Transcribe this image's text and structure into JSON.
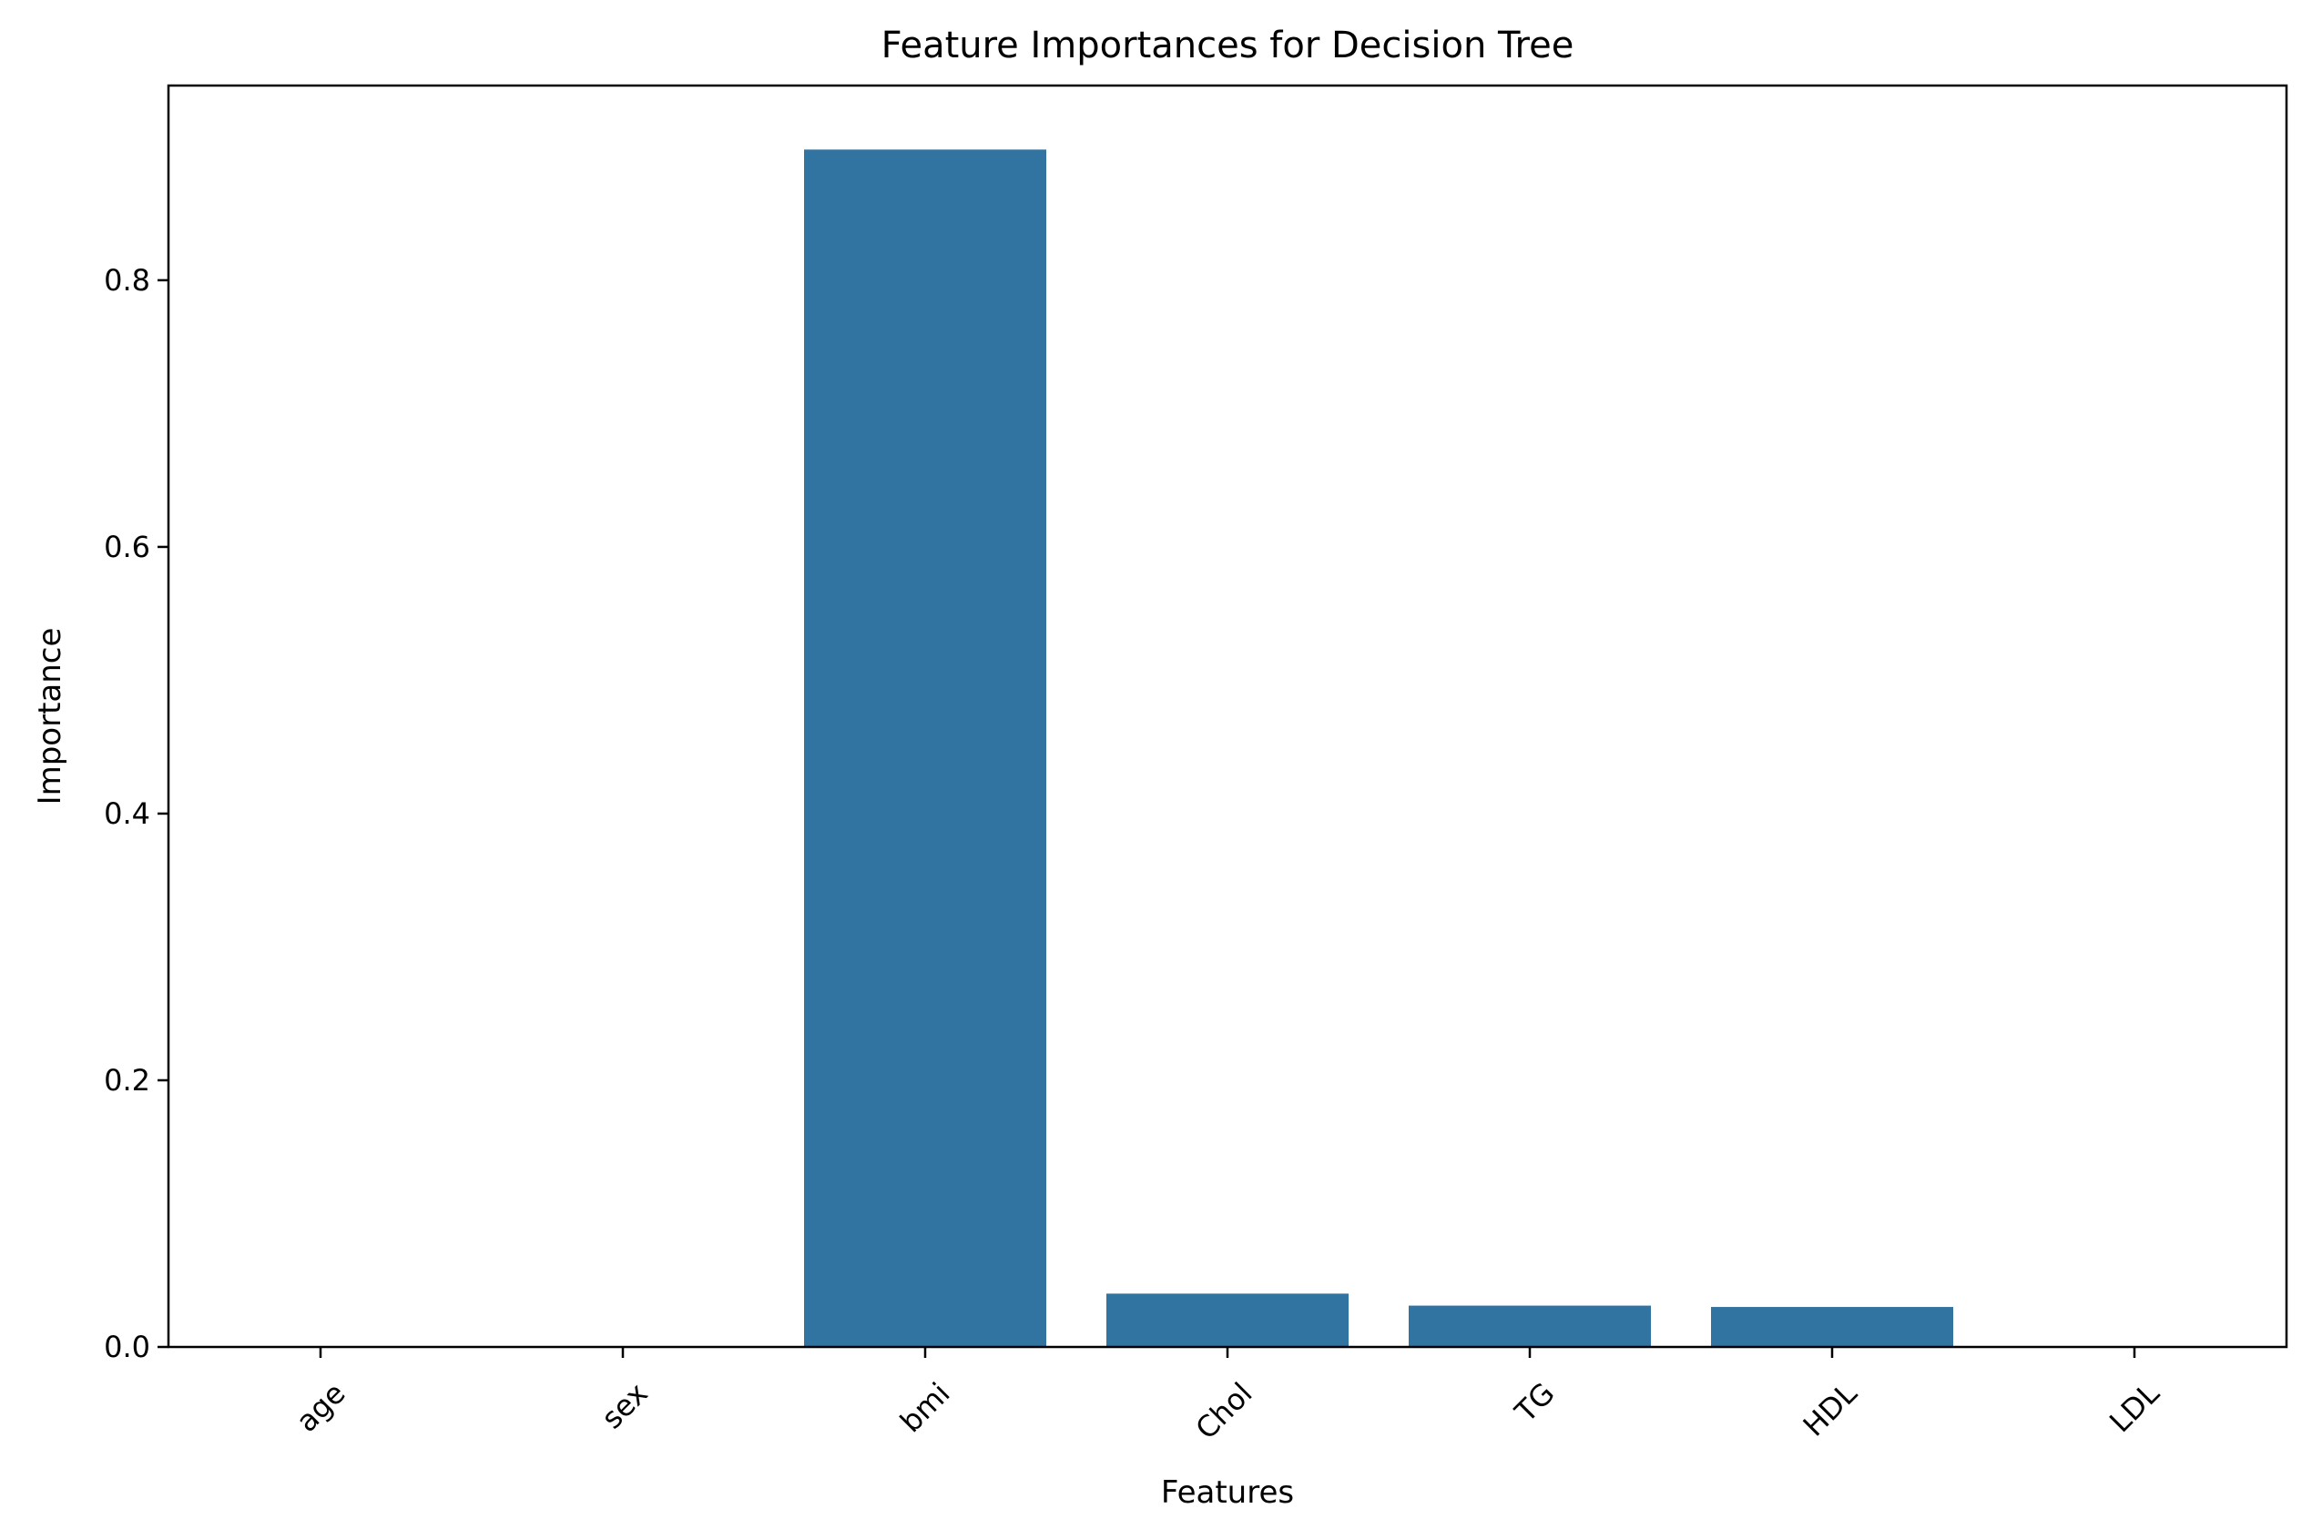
{
  "chart_data": {
    "type": "bar",
    "title": "Feature Importances for Decision Tree",
    "xlabel": "Features",
    "ylabel": "Importance",
    "categories": [
      "age",
      "sex",
      "bmi",
      "Chol",
      "TG",
      "HDL",
      "LDL"
    ],
    "values": [
      0.0,
      0.0,
      0.898,
      0.04,
      0.031,
      0.03,
      0.0
    ],
    "ylim": [
      0,
      0.946
    ],
    "yticks": [
      0.0,
      0.2,
      0.4,
      0.6,
      0.8
    ],
    "ytick_labels": [
      "0.0",
      "0.2",
      "0.4",
      "0.6",
      "0.8"
    ],
    "bar_color": "#3274a1",
    "grid": false,
    "xtick_rotation": 45
  }
}
